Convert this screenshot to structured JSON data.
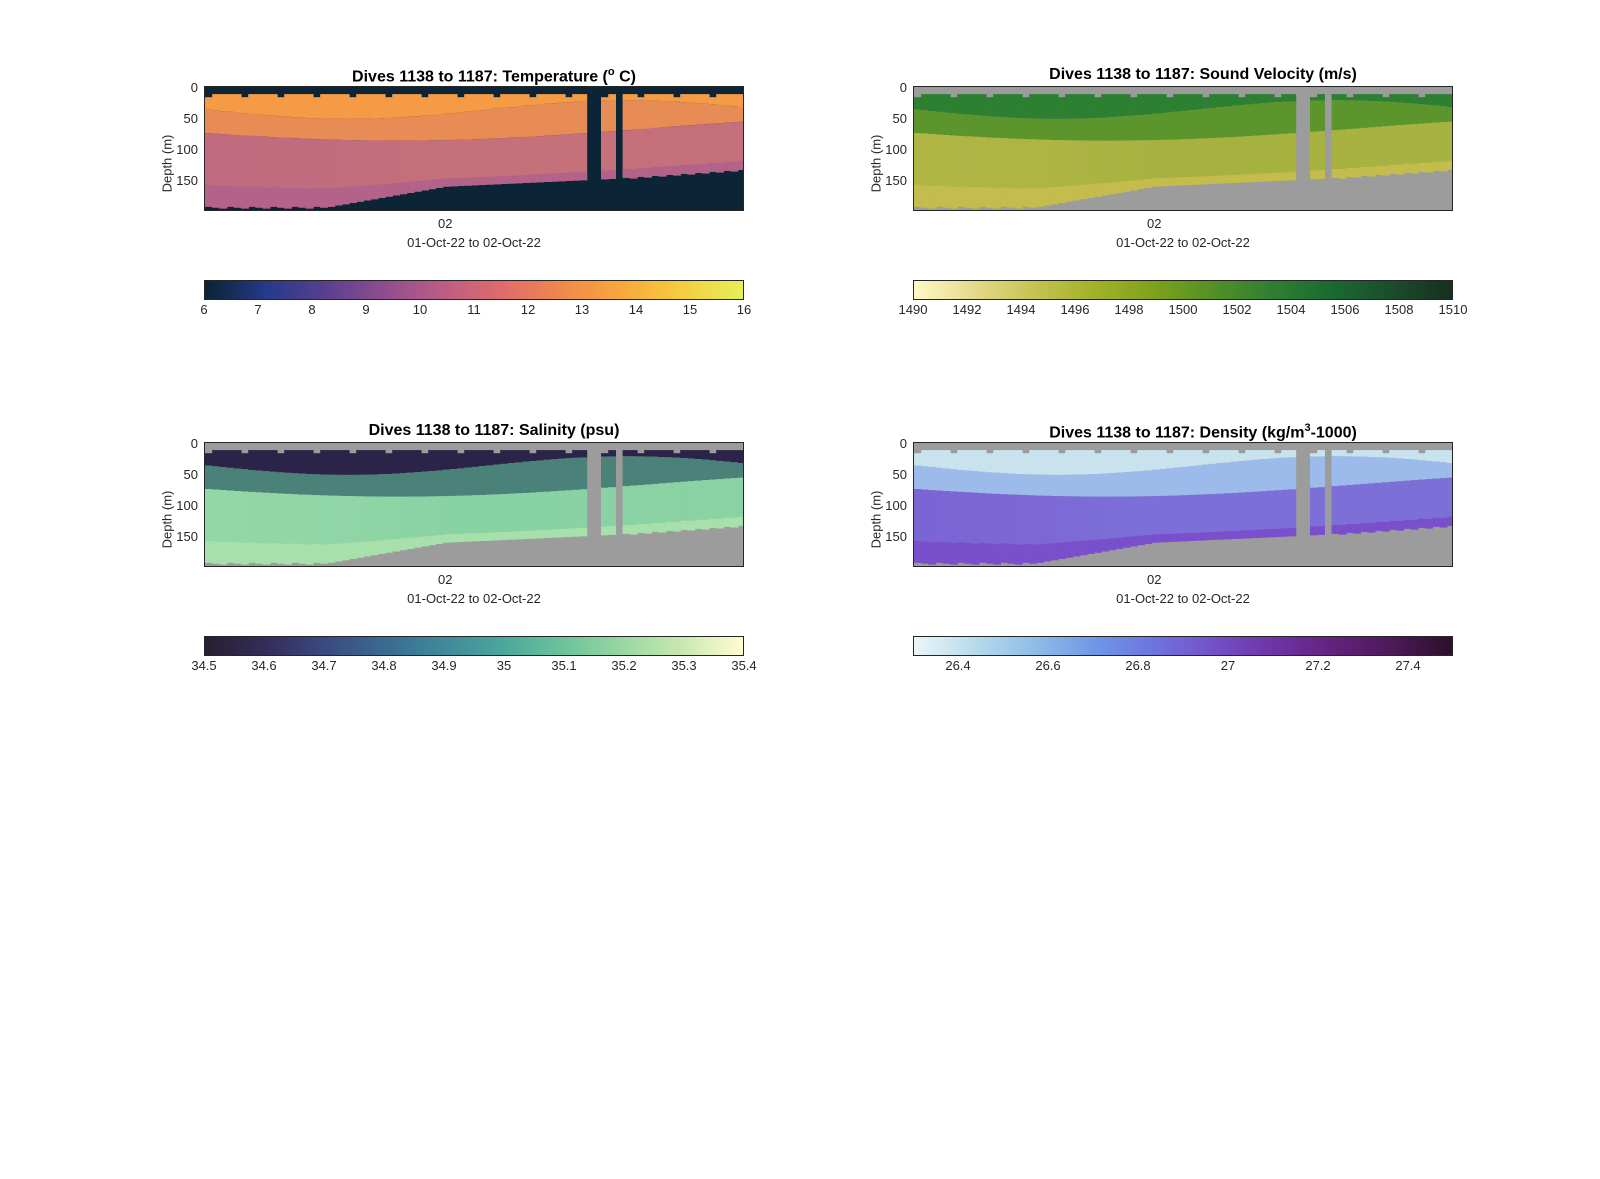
{
  "chart_data": [
    {
      "type": "heatmap",
      "title": "Dives 1138 to 1187: Temperature (",
      "title_sup": "o",
      "title_tail": " C)",
      "ylabel": "Depth (m)",
      "xlabel": "01-Oct-22 to 02-Oct-22",
      "xtick_labels": [
        "02"
      ],
      "ytick_labels": [
        "0",
        "50",
        "100",
        "150"
      ],
      "ylim": [
        0,
        195
      ],
      "colorbar": {
        "ticks": [
          "6",
          "7",
          "8",
          "9",
          "10",
          "11",
          "12",
          "13",
          "14",
          "15",
          "16"
        ],
        "range": [
          6,
          16
        ]
      },
      "colors": {
        "surface": "#f59a45",
        "mid": "#e08362",
        "deep": "#b3628a",
        "mask": "#0b2436",
        "cmap": [
          "#0b2436",
          "#253a8a",
          "#5a3f8f",
          "#8f4e8f",
          "#bd5d84",
          "#e06c6a",
          "#f0894b",
          "#f8a83c",
          "#f5cd3f",
          "#e6ef58"
        ]
      },
      "approx_values": {
        "surface_temp": 13.3,
        "deep_temp": 10.5
      }
    },
    {
      "type": "heatmap",
      "title": "Dives 1138 to 1187: Sound Velocity (m/s)",
      "ylabel": "Depth (m)",
      "xlabel": "01-Oct-22 to 02-Oct-22",
      "xtick_labels": [
        "02"
      ],
      "ytick_labels": [
        "0",
        "50",
        "100",
        "150"
      ],
      "ylim": [
        0,
        195
      ],
      "colorbar": {
        "ticks": [
          "1490",
          "1492",
          "1494",
          "1496",
          "1498",
          "1500",
          "1502",
          "1504",
          "1506",
          "1508",
          "1510"
        ],
        "range": [
          1490,
          1510
        ]
      },
      "colors": {
        "surface": "#2d7f31",
        "mid": "#7da32b",
        "deep": "#c4bd4e",
        "mask": "#9c9c9c",
        "cmap": [
          "#fdf7c4",
          "#e4d98a",
          "#c5c452",
          "#a2b228",
          "#7ea21b",
          "#539026",
          "#2f7f31",
          "#1a6a32",
          "#1b4d2c",
          "#18301f"
        ]
      },
      "approx_values": {
        "surface_velocity": 1503,
        "deep_velocity": 1496
      }
    },
    {
      "type": "heatmap",
      "title": "Dives 1138 to 1187: Salinity (psu)",
      "ylabel": "Depth (m)",
      "xlabel": "01-Oct-22 to 02-Oct-22",
      "xtick_labels": [
        "02"
      ],
      "ytick_labels": [
        "0",
        "50",
        "100",
        "150"
      ],
      "ylim": [
        0,
        195
      ],
      "colorbar": {
        "ticks": [
          "34.5",
          "34.6",
          "34.7",
          "34.8",
          "34.9",
          "35",
          "35.1",
          "35.2",
          "35.3",
          "35.4"
        ],
        "range": [
          34.5,
          35.4
        ]
      },
      "colors": {
        "surface": "#2b2448",
        "mid": "#5fbf9a",
        "deep": "#a8e0ab",
        "mask": "#9c9c9c",
        "cmap": [
          "#291f33",
          "#342d5a",
          "#3a4a80",
          "#3a6a92",
          "#3f8a9a",
          "#4ba79c",
          "#6cc39b",
          "#9ad6a2",
          "#c8e8b0",
          "#fdfbd0"
        ]
      },
      "approx_values": {
        "surface_salinity": 34.6,
        "deep_salinity": 35.25
      }
    },
    {
      "type": "heatmap",
      "title": "Dives 1138 to 1187: Density (kg/m",
      "title_sup": "3",
      "title_tail": "-1000)",
      "ylabel": "Depth (m)",
      "xlabel": "01-Oct-22 to 02-Oct-22",
      "xtick_labels": [
        "02"
      ],
      "ytick_labels": [
        "0",
        "50",
        "100",
        "150"
      ],
      "ylim": [
        0,
        195
      ],
      "colorbar": {
        "ticks": [
          "26.4",
          "26.6",
          "26.8",
          "27",
          "27.2",
          "27.4"
        ],
        "range": [
          26.3,
          27.5
        ]
      },
      "colors": {
        "surface": "#c8e3ee",
        "mid": "#7f9ee8",
        "deep": "#7a4fcc",
        "mask": "#9c9c9c",
        "cmap": [
          "#e9f5f7",
          "#b6dbec",
          "#8fbde8",
          "#6f98e6",
          "#6e74de",
          "#7451c7",
          "#6e35a6",
          "#64227f",
          "#4d1a5a",
          "#2e0f2c"
        ]
      },
      "approx_values": {
        "surface_density": 26.4,
        "deep_density": 26.95
      }
    }
  ]
}
